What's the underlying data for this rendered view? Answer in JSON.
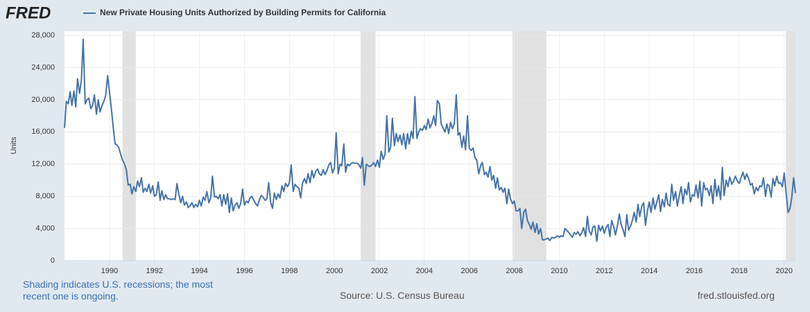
{
  "logo": "FRED",
  "footer": {
    "note": "Shading indicates U.S. recessions; the most recent one is ongoing.",
    "source": "Source: U.S. Census Bureau",
    "site": "fred.stlouisfed.org"
  },
  "chart_data": {
    "type": "line",
    "y_label": "Units",
    "xlim": [
      1988,
      2020.5
    ],
    "xticks": [
      1990,
      1992,
      1994,
      1996,
      1998,
      2000,
      2002,
      2004,
      2006,
      2008,
      2010,
      2012,
      2014,
      2016,
      2018,
      2020
    ],
    "ylim": [
      0,
      28000
    ],
    "yticks": [
      0,
      {
        "value": 4000,
        "label": "4,000"
      },
      {
        "value": 8000,
        "label": "8,000"
      },
      {
        "value": 12000,
        "label": "12,000"
      },
      {
        "value": 16000,
        "label": "16,000"
      },
      {
        "value": 20000,
        "label": "20,000"
      },
      {
        "value": 24000,
        "label": "24,000"
      },
      {
        "value": 28000,
        "label": "28,000"
      }
    ],
    "grid": true,
    "recessions": [
      [
        1990.58,
        1991.17
      ],
      [
        2001.17,
        2001.83
      ],
      [
        2007.92,
        2009.42
      ],
      [
        2020.08,
        2020.5
      ]
    ],
    "x": [
      1988,
      1988.08,
      1988.17,
      1988.25,
      1988.33,
      1988.42,
      1988.5,
      1988.58,
      1988.67,
      1988.75,
      1988.83,
      1988.92,
      1989,
      1989.08,
      1989.17,
      1989.25,
      1989.33,
      1989.42,
      1989.5,
      1989.58,
      1989.67,
      1989.75,
      1989.83,
      1989.92,
      1990,
      1990.08,
      1990.17,
      1990.25,
      1990.33,
      1990.42,
      1990.5,
      1990.58,
      1990.67,
      1990.75,
      1990.83,
      1990.92,
      1991,
      1991.08,
      1991.17,
      1991.25,
      1991.33,
      1991.42,
      1991.5,
      1991.58,
      1991.67,
      1991.75,
      1991.83,
      1991.92,
      1992,
      1992.08,
      1992.17,
      1992.25,
      1992.33,
      1992.42,
      1992.5,
      1992.58,
      1992.67,
      1992.75,
      1992.83,
      1992.92,
      1993,
      1993.08,
      1993.17,
      1993.25,
      1993.33,
      1993.42,
      1993.5,
      1993.58,
      1993.67,
      1993.75,
      1993.83,
      1993.92,
      1994,
      1994.08,
      1994.17,
      1994.25,
      1994.33,
      1994.42,
      1994.5,
      1994.58,
      1994.67,
      1994.75,
      1994.83,
      1994.92,
      1995,
      1995.08,
      1995.17,
      1995.25,
      1995.33,
      1995.42,
      1995.5,
      1995.58,
      1995.67,
      1995.75,
      1995.83,
      1995.92,
      1996,
      1996.08,
      1996.17,
      1996.25,
      1996.33,
      1996.42,
      1996.5,
      1996.58,
      1996.67,
      1996.75,
      1996.83,
      1996.92,
      1997,
      1997.08,
      1997.17,
      1997.25,
      1997.33,
      1997.42,
      1997.5,
      1997.58,
      1997.67,
      1997.75,
      1997.83,
      1997.92,
      1998,
      1998.08,
      1998.17,
      1998.25,
      1998.33,
      1998.42,
      1998.5,
      1998.58,
      1998.67,
      1998.75,
      1998.83,
      1998.92,
      1999,
      1999.08,
      1999.17,
      1999.25,
      1999.33,
      1999.42,
      1999.5,
      1999.58,
      1999.67,
      1999.75,
      1999.83,
      1999.92,
      2000,
      2000.08,
      2000.17,
      2000.25,
      2000.33,
      2000.42,
      2000.5,
      2000.58,
      2000.67,
      2000.75,
      2000.83,
      2000.92,
      2001,
      2001.08,
      2001.17,
      2001.25,
      2001.33,
      2001.42,
      2001.5,
      2001.58,
      2001.67,
      2001.75,
      2001.83,
      2001.92,
      2002,
      2002.08,
      2002.17,
      2002.25,
      2002.33,
      2002.42,
      2002.5,
      2002.58,
      2002.67,
      2002.75,
      2002.83,
      2002.92,
      2003,
      2003.08,
      2003.17,
      2003.25,
      2003.33,
      2003.42,
      2003.5,
      2003.58,
      2003.67,
      2003.75,
      2003.83,
      2003.92,
      2004,
      2004.08,
      2004.17,
      2004.25,
      2004.33,
      2004.42,
      2004.5,
      2004.58,
      2004.67,
      2004.75,
      2004.83,
      2004.92,
      2005,
      2005.08,
      2005.17,
      2005.25,
      2005.33,
      2005.42,
      2005.5,
      2005.58,
      2005.67,
      2005.75,
      2005.83,
      2005.92,
      2006,
      2006.08,
      2006.17,
      2006.25,
      2006.33,
      2006.42,
      2006.5,
      2006.58,
      2006.67,
      2006.75,
      2006.83,
      2006.92,
      2007,
      2007.08,
      2007.17,
      2007.25,
      2007.33,
      2007.42,
      2007.5,
      2007.58,
      2007.67,
      2007.75,
      2007.83,
      2007.92,
      2008,
      2008.08,
      2008.17,
      2008.25,
      2008.33,
      2008.42,
      2008.5,
      2008.58,
      2008.67,
      2008.75,
      2008.83,
      2008.92,
      2009,
      2009.08,
      2009.17,
      2009.25,
      2009.33,
      2009.42,
      2009.5,
      2009.58,
      2009.67,
      2009.75,
      2009.83,
      2009.92,
      2010,
      2010.08,
      2010.17,
      2010.25,
      2010.33,
      2010.42,
      2010.5,
      2010.58,
      2010.67,
      2010.75,
      2010.83,
      2010.92,
      2011,
      2011.08,
      2011.17,
      2011.25,
      2011.33,
      2011.42,
      2011.5,
      2011.58,
      2011.67,
      2011.75,
      2011.83,
      2011.92,
      2012,
      2012.08,
      2012.17,
      2012.25,
      2012.33,
      2012.42,
      2012.5,
      2012.58,
      2012.67,
      2012.75,
      2012.83,
      2012.92,
      2013,
      2013.08,
      2013.17,
      2013.25,
      2013.33,
      2013.42,
      2013.5,
      2013.58,
      2013.67,
      2013.75,
      2013.83,
      2013.92,
      2014,
      2014.08,
      2014.17,
      2014.25,
      2014.33,
      2014.42,
      2014.5,
      2014.58,
      2014.67,
      2014.75,
      2014.83,
      2014.92,
      2015,
      2015.08,
      2015.17,
      2015.25,
      2015.33,
      2015.42,
      2015.5,
      2015.58,
      2015.67,
      2015.75,
      2015.83,
      2015.92,
      2016,
      2016.08,
      2016.17,
      2016.25,
      2016.33,
      2016.42,
      2016.5,
      2016.58,
      2016.67,
      2016.75,
      2016.83,
      2016.92,
      2017,
      2017.08,
      2017.17,
      2017.25,
      2017.33,
      2017.42,
      2017.5,
      2017.58,
      2017.67,
      2017.75,
      2017.83,
      2017.92,
      2018,
      2018.08,
      2018.17,
      2018.25,
      2018.33,
      2018.42,
      2018.5,
      2018.58,
      2018.67,
      2018.75,
      2018.83,
      2018.92,
      2019,
      2019.08,
      2019.17,
      2019.25,
      2019.33,
      2019.42,
      2019.5,
      2019.58,
      2019.67,
      2019.75,
      2019.83,
      2019.92,
      2020,
      2020.08,
      2020.17,
      2020.25,
      2020.33,
      2020.42,
      2020.5
    ],
    "series": [
      {
        "name": "New Private Housing Units Authorized by Building Permits for California",
        "color": "#4572a7",
        "values": [
          16500,
          19800,
          19500,
          21000,
          19300,
          21100,
          19100,
          22600,
          20800,
          22400,
          27500,
          19500,
          20000,
          20200,
          18900,
          19300,
          20600,
          18200,
          20000,
          18500,
          19300,
          19800,
          20500,
          23000,
          21000,
          19000,
          16500,
          14500,
          14400,
          14000,
          13200,
          12500,
          12000,
          11300,
          9400,
          9500,
          8300,
          9200,
          8600,
          9900,
          9200,
          10300,
          8500,
          9000,
          8600,
          9500,
          8400,
          9300,
          8000,
          8200,
          9800,
          7500,
          8700,
          7600,
          8200,
          7700,
          7700,
          7600,
          7700,
          7600,
          9600,
          8300,
          7200,
          8000,
          6900,
          7300,
          6600,
          6800,
          7200,
          6600,
          7000,
          6700,
          7500,
          6800,
          7900,
          7500,
          8600,
          7200,
          7800,
          10500,
          7900,
          8000,
          7700,
          8200,
          6800,
          8200,
          7000,
          8300,
          6000,
          7800,
          6200,
          6900,
          7200,
          6500,
          7100,
          8900,
          6900,
          7400,
          7200,
          7800,
          8000,
          7500,
          7100,
          6800,
          7600,
          8100,
          7900,
          7500,
          7700,
          9700,
          7200,
          6500,
          8400,
          7600,
          8300,
          7800,
          9300,
          8600,
          9600,
          9200,
          9700,
          11900,
          8600,
          9500,
          9200,
          9000,
          7800,
          9600,
          10200,
          9600,
          10800,
          9700,
          11200,
          10300,
          11100,
          11400,
          10800,
          10600,
          11300,
          10700,
          11200,
          11900,
          12200,
          10900,
          11500,
          15900,
          10800,
          12000,
          11800,
          14500,
          11000,
          12000,
          11800,
          12100,
          12200,
          12100,
          12100,
          12000,
          11500,
          12800,
          9400,
          12000,
          11800,
          11700,
          11900,
          12200,
          11700,
          12500,
          11600,
          13600,
          12600,
          13200,
          18000,
          13500,
          14100,
          17700,
          14300,
          15800,
          14800,
          15600,
          14400,
          15800,
          13900,
          15800,
          14500,
          16100,
          15200,
          20400,
          15200,
          16000,
          16400,
          16200,
          16800,
          16300,
          17600,
          16500,
          17000,
          18000,
          16800,
          19900,
          19500,
          17000,
          16500,
          16000,
          17000,
          15800,
          17200,
          16400,
          17000,
          20600,
          15600,
          15900,
          14100,
          15500,
          13800,
          18000,
          14000,
          13700,
          14000,
          12800,
          12500,
          10800,
          11800,
          12200,
          10700,
          11000,
          10400,
          11700,
          10000,
          10600,
          9000,
          10300,
          8800,
          9100,
          8500,
          9000,
          7100,
          8900,
          7700,
          7100,
          7400,
          6200,
          6200,
          6500,
          4000,
          6000,
          6400,
          5000,
          4500,
          3900,
          4800,
          3500,
          4600,
          3300,
          4000,
          2600,
          2600,
          2700,
          2800,
          2500,
          2900,
          2800,
          2900,
          3100,
          2900,
          3100,
          3000,
          4000,
          3800,
          3500,
          3200,
          2900,
          3500,
          3300,
          3600,
          3100,
          3500,
          4100,
          3000,
          5500,
          3700,
          3200,
          4200,
          4300,
          2400,
          4400,
          3700,
          4300,
          3400,
          4100,
          4500,
          3000,
          5000,
          4200,
          3200,
          4300,
          5800,
          4500,
          3900,
          3000,
          5700,
          3800,
          4300,
          5000,
          6000,
          4800,
          7000,
          5500,
          6800,
          7200,
          4400,
          6200,
          7300,
          6000,
          7800,
          6400,
          7200,
          8200,
          6100,
          7600,
          6700,
          8400,
          7000,
          6800,
          9500,
          7500,
          8600,
          6800,
          8000,
          9200,
          7100,
          8900,
          8200,
          9700,
          7300,
          8200,
          8000,
          9400,
          7800,
          9900,
          6800,
          9700,
          8800,
          9000,
          8100,
          9300,
          7100,
          10100,
          8000,
          9300,
          7600,
          11600,
          8100,
          10000,
          9200,
          10400,
          9500,
          9900,
          10500,
          9900,
          9600,
          10300,
          11000,
          10100,
          10800,
          10200,
          9400,
          9600,
          8300,
          9100,
          8700,
          9300,
          9200,
          10300,
          8000,
          9500,
          9300,
          7900,
          10200,
          9300,
          10500,
          9600,
          9700,
          9200,
          10900,
          8600,
          6000,
          6400,
          7700,
          10300,
          8400
        ]
      }
    ]
  }
}
